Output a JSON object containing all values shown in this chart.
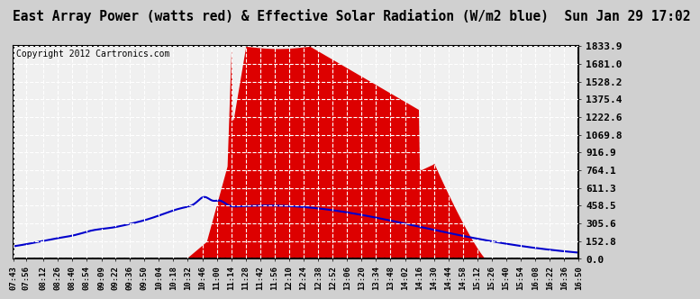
{
  "title": "East Array Power (watts red) & Effective Solar Radiation (W/m2 blue)  Sun Jan 29 17:02",
  "copyright": "Copyright 2012 Cartronics.com",
  "yticks": [
    0.0,
    152.8,
    305.6,
    458.5,
    611.3,
    764.1,
    916.9,
    1069.8,
    1222.6,
    1375.4,
    1528.2,
    1681.0,
    1833.9
  ],
  "ymax": 1833.9,
  "bg_color": "#d0d0d0",
  "plot_bg": "#f0f0f0",
  "grid_color": "#aaaaaa",
  "fill_color": "#dd0000",
  "line_color": "#0000cc",
  "title_fontsize": 10.5,
  "copyright_fontsize": 7,
  "xtick_fontsize": 6.5,
  "ytick_fontsize": 8,
  "xtick_labels": [
    "07:43",
    "07:56",
    "08:12",
    "08:26",
    "08:40",
    "08:54",
    "09:09",
    "09:22",
    "09:36",
    "09:50",
    "10:04",
    "10:18",
    "10:32",
    "10:46",
    "11:00",
    "11:14",
    "11:28",
    "11:42",
    "11:56",
    "12:10",
    "12:24",
    "12:38",
    "12:52",
    "13:06",
    "13:20",
    "13:34",
    "13:48",
    "14:02",
    "14:16",
    "14:30",
    "14:44",
    "14:58",
    "15:12",
    "15:26",
    "15:40",
    "15:54",
    "16:08",
    "16:22",
    "16:36",
    "16:50"
  ]
}
